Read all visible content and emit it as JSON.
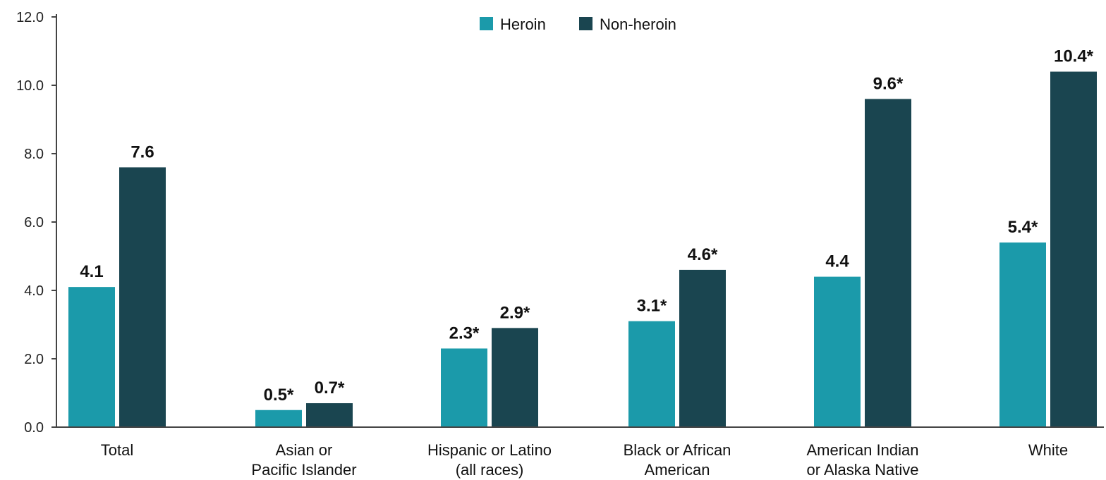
{
  "chart_data": {
    "type": "bar",
    "title": "",
    "xlabel": "",
    "ylabel": "",
    "ylim": [
      0,
      12
    ],
    "yticks": [
      "0.0",
      "2.0",
      "4.0",
      "6.0",
      "8.0",
      "10.0",
      "12.0"
    ],
    "grid": false,
    "legend_position": "top-center",
    "categories": [
      [
        "Total"
      ],
      [
        "Asian or",
        "Pacific Islander"
      ],
      [
        "Hispanic or Latino",
        "(all races)"
      ],
      [
        "Black or African",
        "American"
      ],
      [
        "American Indian",
        "or Alaska Native"
      ],
      [
        "White"
      ]
    ],
    "series": [
      {
        "name": "Heroin",
        "color": "#1b9aaa",
        "values": [
          4.1,
          0.5,
          2.3,
          3.1,
          4.4,
          5.4
        ],
        "labels": [
          "4.1",
          "0.5*",
          "2.3*",
          "3.1*",
          "4.4",
          "5.4*"
        ]
      },
      {
        "name": "Non-heroin",
        "color": "#1a4550",
        "values": [
          7.6,
          0.7,
          2.9,
          4.6,
          9.6,
          10.4
        ],
        "labels": [
          "7.6",
          "0.7*",
          "2.9*",
          "4.6*",
          "9.6*",
          "10.4*"
        ]
      }
    ]
  }
}
